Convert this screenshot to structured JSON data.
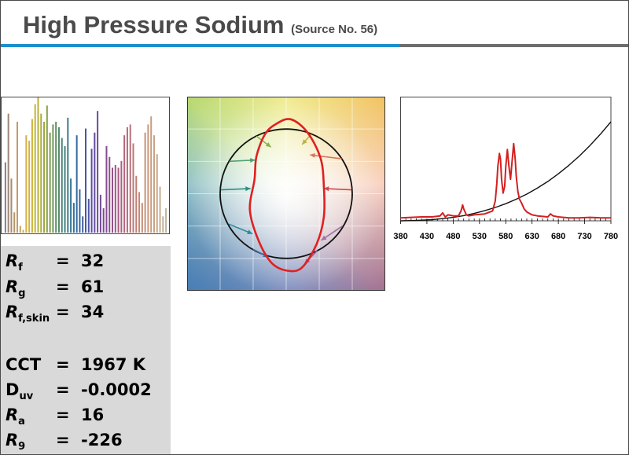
{
  "header": {
    "title": "High Pressure Sodium",
    "subtitle": "(Source No. 56)"
  },
  "metrics": [
    {
      "main": "R",
      "sub": "f",
      "italic": true,
      "eq": "=",
      "value": "32"
    },
    {
      "main": "R",
      "sub": "g",
      "italic": true,
      "eq": "=",
      "value": "61"
    },
    {
      "main": "R",
      "sub": "f,skin",
      "italic": true,
      "eq": "=",
      "value": "34"
    },
    {
      "main": "CCT",
      "sub": "",
      "italic": false,
      "eq": "=",
      "value": "1967 K"
    },
    {
      "main": "D",
      "sub": "uv",
      "italic": false,
      "eq": "=",
      "value": "-0.0002"
    },
    {
      "main": "R",
      "sub": "a",
      "italic": true,
      "eq": "=",
      "value": "16"
    },
    {
      "main": "R",
      "sub": "9",
      "italic": true,
      "eq": "=",
      "value": "-226"
    }
  ],
  "chart_data": [
    {
      "type": "bar",
      "description_of_axes": "none",
      "values": [
        52,
        88,
        40,
        15,
        82,
        5,
        2,
        72,
        68,
        84,
        95,
        100,
        88,
        82,
        94,
        74,
        80,
        82,
        78,
        70,
        64,
        85,
        40,
        22,
        72,
        32,
        12,
        77,
        25,
        62,
        74,
        90,
        28,
        18,
        64,
        56,
        48,
        50,
        48,
        53,
        72,
        78,
        80,
        66,
        42,
        30,
        22,
        74,
        80,
        86,
        72,
        58,
        34,
        12,
        18
      ],
      "colors": [
        "#8e7a86",
        "#9c8478",
        "#a88c70",
        "#b49468",
        "#c09c66",
        "#c9a35c",
        "#cfa953",
        "#d3ae4c",
        "#d2b240",
        "#cdb33a",
        "#c4b437",
        "#b8b238",
        "#a9ae3c",
        "#9aa840",
        "#8aa246",
        "#7a9c4e",
        "#6d9658",
        "#609062",
        "#558a6c",
        "#4c8578",
        "#438083",
        "#3b7b8c",
        "#367694",
        "#34709a",
        "#356a9f",
        "#3964a2",
        "#3e5ea4",
        "#4658a4",
        "#4f53a3",
        "#584fa1",
        "#624c9e",
        "#6b4a9b",
        "#744a97",
        "#7c4a93",
        "#854c90",
        "#8d4e8d",
        "#955189",
        "#9c5585",
        "#a35a82",
        "#a95f7f",
        "#af657c",
        "#b46b7a",
        "#b97178",
        "#bd7876",
        "#c07e75",
        "#c38575",
        "#c58b76",
        "#c79178",
        "#c8977b",
        "#c99d7f",
        "#c9a284",
        "#c8a78a",
        "#c6ac91",
        "#c3b098",
        "#bfb4a0"
      ],
      "ylim": [
        0,
        100
      ]
    },
    {
      "type": "scatter",
      "chart_kind": "color vector graphic",
      "xlim": [
        -1.5,
        1.5
      ],
      "ylim": [
        -1.5,
        1.5
      ],
      "grid": true,
      "reference_circle_radius": 1,
      "test_contour": [
        [
          0.07,
          1.15
        ],
        [
          0.32,
          0.95
        ],
        [
          0.52,
          0.55
        ],
        [
          0.57,
          0.12
        ],
        [
          0.57,
          -0.36
        ],
        [
          0.46,
          -0.78
        ],
        [
          0.24,
          -1.14
        ],
        [
          0.02,
          -1.19
        ],
        [
          -0.22,
          -1.07
        ],
        [
          -0.42,
          -0.72
        ],
        [
          -0.55,
          -0.25
        ],
        [
          -0.48,
          0.22
        ],
        [
          -0.45,
          0.58
        ],
        [
          -0.32,
          0.92
        ],
        [
          -0.15,
          1.08
        ]
      ],
      "arrows": [
        {
          "from": [
            0.38,
            0.92
          ],
          "to": [
            0.24,
            0.76
          ],
          "color": "#c0b040"
        },
        {
          "from": [
            0.84,
            0.54
          ],
          "to": [
            0.36,
            0.6
          ],
          "color": "#d27a5a"
        },
        {
          "from": [
            0.99,
            0.06
          ],
          "to": [
            0.57,
            0.08
          ],
          "color": "#d04a4a"
        },
        {
          "from": [
            0.85,
            -0.5
          ],
          "to": [
            0.53,
            -0.72
          ],
          "color": "#a070a0"
        },
        {
          "from": [
            0.47,
            -0.88
          ],
          "to": [
            0.28,
            -1.08
          ],
          "color": "#9a5aa0"
        },
        {
          "from": [
            -0.45,
            0.89
          ],
          "to": [
            -0.23,
            0.72
          ],
          "color": "#8cb050"
        },
        {
          "from": [
            -0.86,
            0.5
          ],
          "to": [
            -0.47,
            0.52
          ],
          "color": "#50a070"
        },
        {
          "from": [
            -0.99,
            0.06
          ],
          "to": [
            -0.54,
            0.08
          ],
          "color": "#2a9080"
        },
        {
          "from": [
            -0.87,
            -0.47
          ],
          "to": [
            -0.51,
            -0.62
          ],
          "color": "#2a8aa0"
        },
        {
          "from": [
            -0.5,
            -0.86
          ],
          "to": [
            -0.27,
            -0.98
          ],
          "color": "#3a70b0"
        }
      ]
    },
    {
      "type": "line",
      "x_ticks": [
        "380",
        "430",
        "480",
        "530",
        "580",
        "630",
        "680",
        "730",
        "780"
      ],
      "xlim": [
        380,
        780
      ],
      "ylim": [
        0,
        1.25
      ],
      "series": [
        {
          "color": "#d42020",
          "x": [
            380,
            400,
            420,
            440,
            455,
            460,
            465,
            470,
            480,
            490,
            495,
            498,
            500,
            505,
            510,
            520,
            540,
            555,
            560,
            563,
            565,
            568,
            570,
            572,
            575,
            578,
            580,
            583,
            586,
            589,
            592,
            595,
            598,
            600,
            603,
            606,
            610,
            615,
            620,
            630,
            640,
            660,
            665,
            670,
            680,
            690,
            700,
            720,
            740,
            760,
            780
          ],
          "y": [
            0.03,
            0.035,
            0.04,
            0.04,
            0.05,
            0.08,
            0.04,
            0.06,
            0.05,
            0.05,
            0.1,
            0.16,
            0.12,
            0.06,
            0.05,
            0.06,
            0.07,
            0.1,
            0.2,
            0.38,
            0.55,
            0.68,
            0.62,
            0.42,
            0.28,
            0.35,
            0.55,
            0.72,
            0.55,
            0.42,
            0.6,
            0.78,
            0.62,
            0.45,
            0.3,
            0.22,
            0.18,
            0.12,
            0.09,
            0.06,
            0.05,
            0.04,
            0.07,
            0.05,
            0.04,
            0.035,
            0.03,
            0.03,
            0.035,
            0.03,
            0.03
          ]
        },
        {
          "color": "#111111",
          "x": [
            380,
            400,
            420,
            440,
            460,
            480,
            500,
            520,
            540,
            560,
            580,
            600,
            620,
            640,
            660,
            680,
            700,
            720,
            740,
            760,
            780
          ],
          "y": [
            0.0,
            0.002,
            0.006,
            0.012,
            0.022,
            0.035,
            0.052,
            0.075,
            0.102,
            0.135,
            0.173,
            0.218,
            0.27,
            0.33,
            0.398,
            0.475,
            0.56,
            0.655,
            0.76,
            0.875,
            1.0
          ]
        }
      ]
    }
  ]
}
